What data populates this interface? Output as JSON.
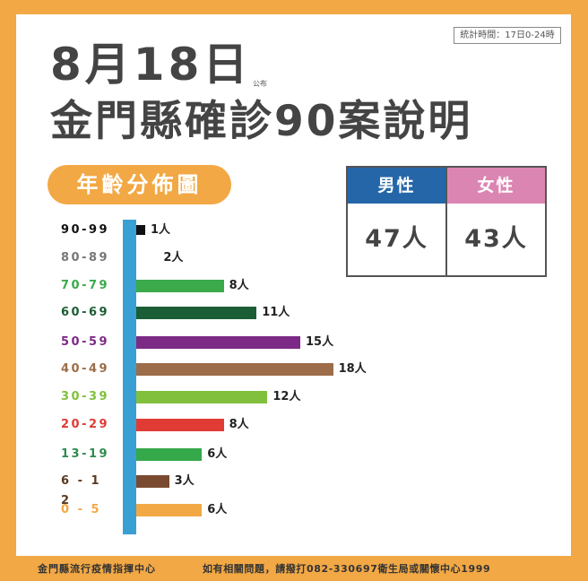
{
  "header": {
    "stat_time": "統計時間：17日0-24時",
    "date": "8月18日",
    "published": "公布",
    "title": "金門縣確診90案說明",
    "section_pill": "年齡分佈圖"
  },
  "gender": {
    "male": {
      "label": "男性",
      "value": "47人",
      "color": "#2566a8"
    },
    "female": {
      "label": "女性",
      "value": "43人",
      "color": "#db86b2"
    }
  },
  "chart": {
    "rows": [
      {
        "label": "90-99",
        "value_text": "1人",
        "value": 1,
        "color": "#111111",
        "label_color": "#111111"
      },
      {
        "label": "80-89",
        "value_text": "2人",
        "value": 2,
        "color": "#ffffff",
        "label_color": "#777777"
      },
      {
        "label": "70-79",
        "value_text": "8人",
        "value": 8,
        "color": "#3aaa4a",
        "label_color": "#3aaa4a"
      },
      {
        "label": "60-69",
        "value_text": "11人",
        "value": 11,
        "color": "#1b5e35",
        "label_color": "#1b5e35"
      },
      {
        "label": "50-59",
        "value_text": "15人",
        "value": 15,
        "color": "#7c2a86",
        "label_color": "#7c2a86"
      },
      {
        "label": "40-49",
        "value_text": "18人",
        "value": 18,
        "color": "#9c6d48",
        "label_color": "#9c6d48"
      },
      {
        "label": "30-39",
        "value_text": "12人",
        "value": 12,
        "color": "#80c03c",
        "label_color": "#80c03c"
      },
      {
        "label": "20-29",
        "value_text": "8人",
        "value": 8,
        "color": "#e03b35",
        "label_color": "#e03b35"
      },
      {
        "label": "13-19",
        "value_text": "6人",
        "value": 6,
        "color": "#35a84a",
        "label_color": "#2e8b4f"
      },
      {
        "label": "6 - 1 2",
        "value_text": "3人",
        "value": 3,
        "color": "#7a4a30",
        "label_color": "#5a3a22"
      },
      {
        "label": "0  -  5",
        "value_text": "6人",
        "value": 6,
        "color": "#f2a845",
        "label_color": "#f2a845"
      }
    ]
  },
  "chart_data": {
    "type": "bar",
    "orientation": "horizontal",
    "title": "年齡分佈圖",
    "categories": [
      "90-99",
      "80-89",
      "70-79",
      "60-69",
      "50-59",
      "40-49",
      "30-39",
      "20-29",
      "13-19",
      "6-12",
      "0-5"
    ],
    "values": [
      1,
      2,
      8,
      11,
      15,
      18,
      12,
      8,
      6,
      3,
      6
    ],
    "value_labels": [
      "1人",
      "2人",
      "8人",
      "11人",
      "15人",
      "18人",
      "12人",
      "8人",
      "6人",
      "3人",
      "6人"
    ],
    "unit": "人",
    "xlabel": "",
    "ylabel": "",
    "grid": false,
    "legend": false,
    "annotations": {
      "male": "47人",
      "female": "43人",
      "total_cases": 90
    }
  },
  "footer": {
    "org": "金門縣流行疫情指揮中心",
    "contact": "如有相關問題，請撥打082-330697衛生局或關懷中心1999"
  }
}
